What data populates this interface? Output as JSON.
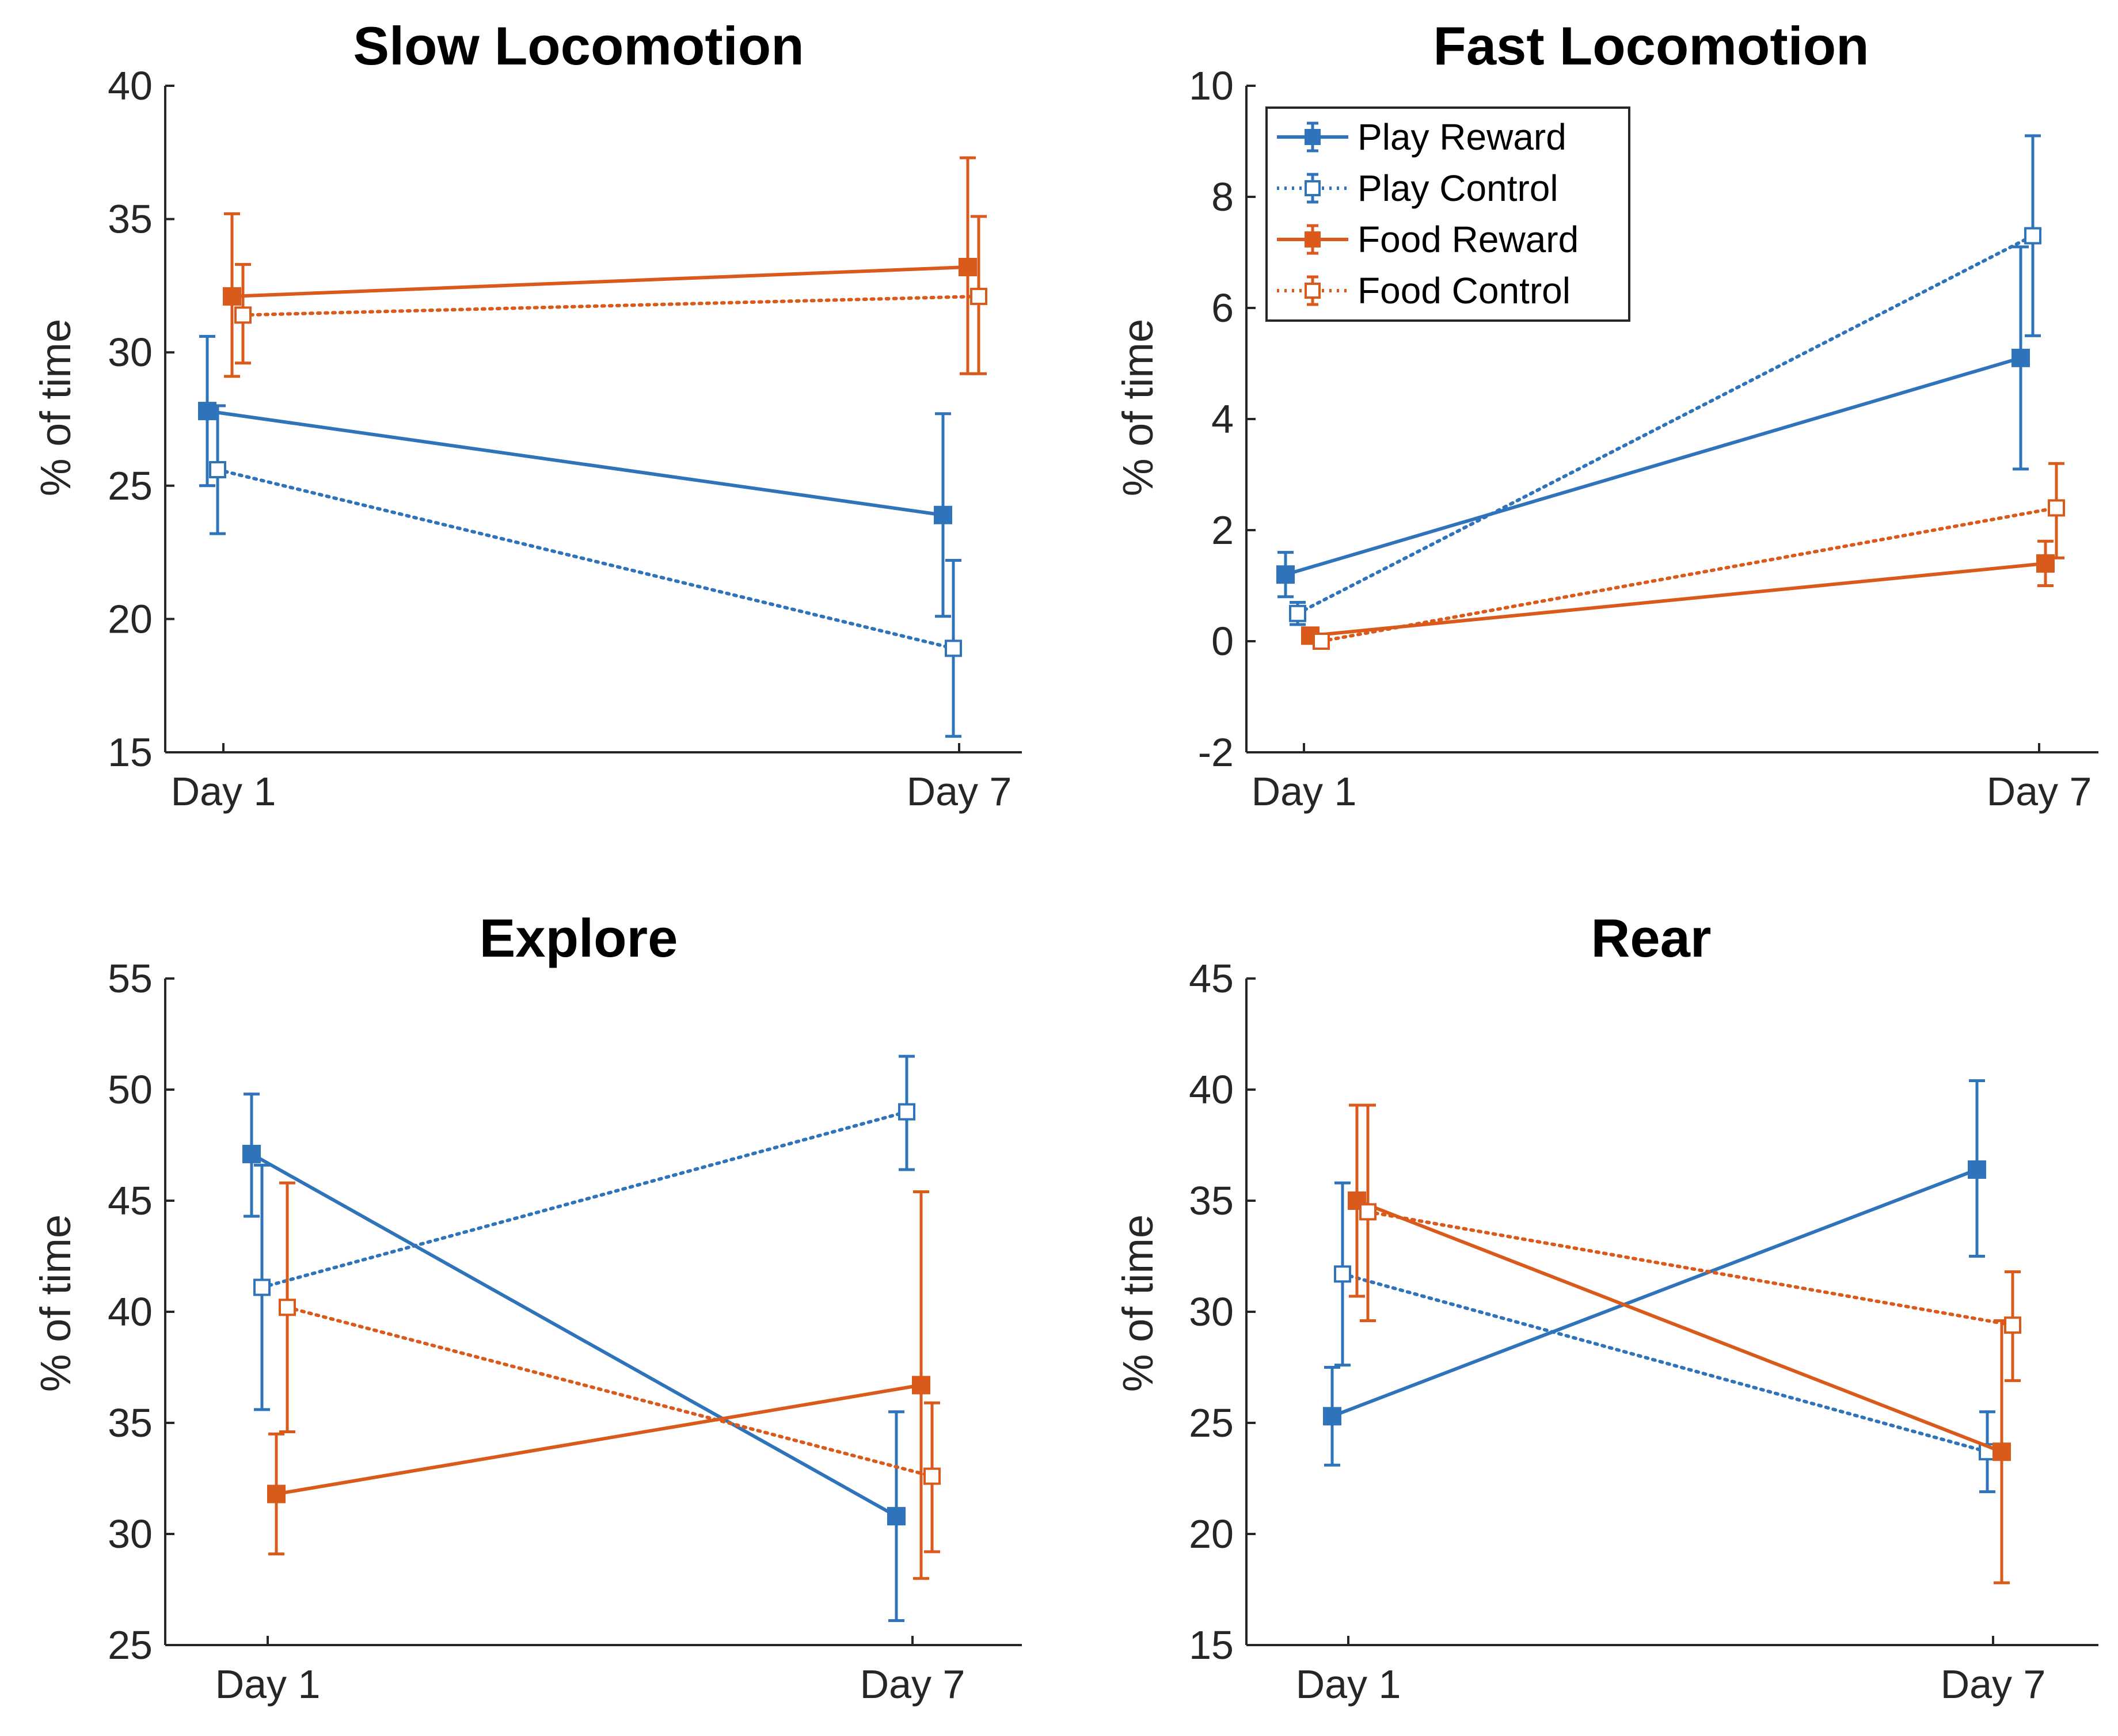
{
  "colors": {
    "play": "#2f73ba",
    "food": "#d95a1b",
    "axis": "#262626"
  },
  "legend": {
    "entries": [
      {
        "name": "Play Reward",
        "color": "#2f73ba",
        "style": "solid",
        "marker": "filled-square"
      },
      {
        "name": "Play Control",
        "color": "#2f73ba",
        "style": "dotted",
        "marker": "open-square"
      },
      {
        "name": "Food Reward",
        "color": "#d95a1b",
        "style": "solid",
        "marker": "filled-square"
      },
      {
        "name": "Food Control",
        "color": "#d95a1b",
        "style": "dotted",
        "marker": "open-square"
      }
    ]
  },
  "chart_data": [
    {
      "type": "line",
      "title": "Slow Locomotion",
      "ylabel": "% of time",
      "categories": [
        "Day 1",
        "Day 7"
      ],
      "ylim": [
        15,
        40
      ],
      "yticks": [
        15,
        20,
        25,
        30,
        35,
        40
      ],
      "series": [
        {
          "name": "Play Reward",
          "values": [
            27.8,
            23.9
          ],
          "err_low": [
            25.0,
            20.1
          ],
          "err_high": [
            30.6,
            27.7
          ]
        },
        {
          "name": "Play Control",
          "values": [
            25.6,
            18.9
          ],
          "err_low": [
            23.2,
            15.6
          ],
          "err_high": [
            28.0,
            22.2
          ]
        },
        {
          "name": "Food Reward",
          "values": [
            32.1,
            33.2
          ],
          "err_low": [
            29.1,
            29.2
          ],
          "err_high": [
            35.2,
            37.3
          ]
        },
        {
          "name": "Food Control",
          "values": [
            31.4,
            32.1
          ],
          "err_low": [
            29.6,
            29.2
          ],
          "err_high": [
            33.3,
            35.1
          ]
        }
      ]
    },
    {
      "type": "line",
      "title": "Fast Locomotion",
      "ylabel": "% of time",
      "categories": [
        "Day 1",
        "Day 7"
      ],
      "ylim": [
        -2,
        10
      ],
      "yticks": [
        -2,
        0,
        2,
        4,
        6,
        8,
        10
      ],
      "legend_position": "top-left",
      "series": [
        {
          "name": "Play Reward",
          "values": [
            1.2,
            5.1
          ],
          "err_low": [
            0.8,
            3.1
          ],
          "err_high": [
            1.6,
            7.1
          ]
        },
        {
          "name": "Play Control",
          "values": [
            0.5,
            7.3
          ],
          "err_low": [
            0.3,
            5.5
          ],
          "err_high": [
            0.7,
            9.1
          ]
        },
        {
          "name": "Food Reward",
          "values": [
            0.1,
            1.4
          ],
          "err_low": [
            0.0,
            1.0
          ],
          "err_high": [
            0.2,
            1.8
          ]
        },
        {
          "name": "Food Control",
          "values": [
            0.0,
            2.4
          ],
          "err_low": [
            -0.1,
            1.5
          ],
          "err_high": [
            0.1,
            3.2
          ]
        }
      ]
    },
    {
      "type": "line",
      "title": "Explore",
      "ylabel": "% of time",
      "categories": [
        "Day 1",
        "Day 7"
      ],
      "ylim": [
        25,
        55
      ],
      "yticks": [
        25,
        30,
        35,
        40,
        45,
        50,
        55
      ],
      "series": [
        {
          "name": "Play Reward",
          "values": [
            47.1,
            30.8
          ],
          "err_low": [
            44.3,
            26.1
          ],
          "err_high": [
            49.8,
            35.5
          ]
        },
        {
          "name": "Play Control",
          "values": [
            41.1,
            49.0
          ],
          "err_low": [
            35.6,
            46.4
          ],
          "err_high": [
            46.6,
            51.5
          ]
        },
        {
          "name": "Food Reward",
          "values": [
            31.8,
            36.7
          ],
          "err_low": [
            29.1,
            28.0
          ],
          "err_high": [
            34.5,
            45.4
          ]
        },
        {
          "name": "Food Control",
          "values": [
            40.2,
            32.6
          ],
          "err_low": [
            34.6,
            29.2
          ],
          "err_high": [
            45.8,
            35.9
          ]
        }
      ]
    },
    {
      "type": "line",
      "title": "Rear",
      "ylabel": "% of time",
      "categories": [
        "Day 1",
        "Day 7"
      ],
      "ylim": [
        15,
        45
      ],
      "yticks": [
        15,
        20,
        25,
        30,
        35,
        40,
        45
      ],
      "series": [
        {
          "name": "Play Reward",
          "values": [
            25.3,
            36.4
          ],
          "err_low": [
            23.1,
            32.5
          ],
          "err_high": [
            27.5,
            40.4
          ]
        },
        {
          "name": "Play Control",
          "values": [
            31.7,
            23.7
          ],
          "err_low": [
            27.6,
            21.9
          ],
          "err_high": [
            35.8,
            25.5
          ]
        },
        {
          "name": "Food Reward",
          "values": [
            35.0,
            23.7
          ],
          "err_low": [
            30.7,
            17.8
          ],
          "err_high": [
            39.3,
            29.6
          ]
        },
        {
          "name": "Food Control",
          "values": [
            34.5,
            29.4
          ],
          "err_low": [
            29.6,
            26.9
          ],
          "err_high": [
            39.3,
            31.8
          ]
        }
      ]
    }
  ]
}
